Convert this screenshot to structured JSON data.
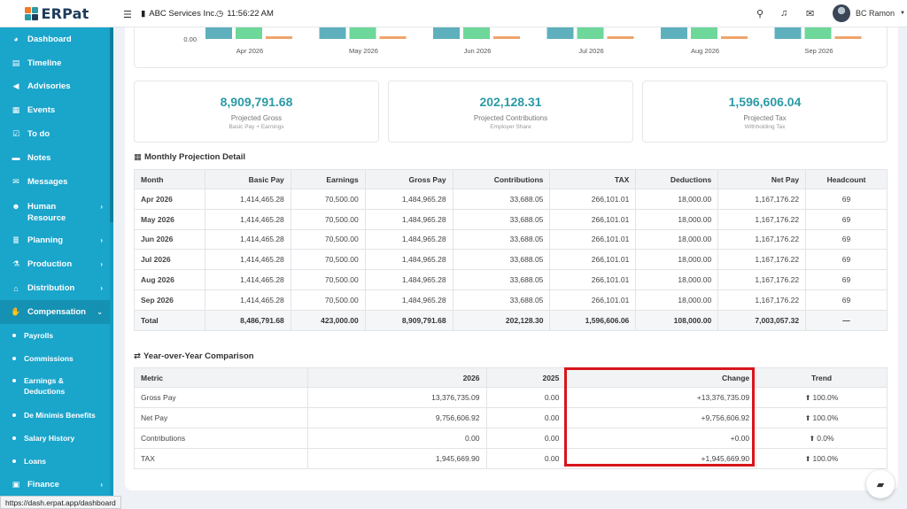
{
  "app": {
    "logo_text": "ERPat",
    "company": "ABC Services Inc.",
    "time": "11:56:22 AM",
    "user_name": "BC Ramon",
    "status_url": "https://dash.erpat.app/dashboard",
    "colors": {
      "sidebar": "#1aa5cb",
      "accent": "#2b9aa6",
      "positive": "#2aa33b",
      "highlight": "#d8151b"
    }
  },
  "sidebar": {
    "items": [
      {
        "label": "Dashboard",
        "icon": "dashboard-icon"
      },
      {
        "label": "Timeline",
        "icon": "timeline-icon"
      },
      {
        "label": "Advisories",
        "icon": "bullhorn-icon"
      },
      {
        "label": "Events",
        "icon": "calendar-icon"
      },
      {
        "label": "To do",
        "icon": "checkbox-icon"
      },
      {
        "label": "Notes",
        "icon": "note-icon"
      },
      {
        "label": "Messages",
        "icon": "envelope-icon"
      },
      {
        "label": "Human Resource",
        "icon": "users-icon"
      },
      {
        "label": "Planning",
        "icon": "layers-icon"
      },
      {
        "label": "Production",
        "icon": "flask-icon"
      },
      {
        "label": "Distribution",
        "icon": "building-icon"
      },
      {
        "label": "Compensation",
        "icon": "hand-money-icon"
      }
    ],
    "sub_items": [
      {
        "label": "Payrolls"
      },
      {
        "label": "Commissions"
      },
      {
        "label": "Earnings & Deductions"
      },
      {
        "label": "De Minimis Benefits"
      },
      {
        "label": "Salary History"
      },
      {
        "label": "Loans"
      }
    ],
    "finance": {
      "label": "Finance",
      "icon": "finance-icon"
    }
  },
  "chart": {
    "zero_label": "0.00",
    "months": [
      "Apr 2026",
      "May 2026",
      "Jun 2026",
      "Jul 2026",
      "Aug 2026",
      "Sep 2026"
    ],
    "series_colors": [
      "#5fb0bd",
      "#6ed79a",
      "#f0a46a"
    ]
  },
  "stats": [
    {
      "value": "8,909,791.68",
      "label": "Projected Gross",
      "sub": "Basic Pay + Earnings"
    },
    {
      "value": "202,128.31",
      "label": "Projected Contributions",
      "sub": "Employer Share"
    },
    {
      "value": "1,596,606.04",
      "label": "Projected Tax",
      "sub": "Withholding Tax"
    }
  ],
  "monthly": {
    "title": "Monthly Projection Detail",
    "headers": [
      "Month",
      "Basic Pay",
      "Earnings",
      "Gross Pay",
      "Contributions",
      "TAX",
      "Deductions",
      "Net Pay",
      "Headcount"
    ],
    "rows": [
      [
        "Apr 2026",
        "1,414,465.28",
        "70,500.00",
        "1,484,965.28",
        "33,688.05",
        "266,101.01",
        "18,000.00",
        "1,167,176.22",
        "69"
      ],
      [
        "May 2026",
        "1,414,465.28",
        "70,500.00",
        "1,484,965.28",
        "33,688.05",
        "266,101.01",
        "18,000.00",
        "1,167,176.22",
        "69"
      ],
      [
        "Jun 2026",
        "1,414,465.28",
        "70,500.00",
        "1,484,965.28",
        "33,688.05",
        "266,101.01",
        "18,000.00",
        "1,167,176.22",
        "69"
      ],
      [
        "Jul 2026",
        "1,414,465.28",
        "70,500.00",
        "1,484,965.28",
        "33,688.05",
        "266,101.01",
        "18,000.00",
        "1,167,176.22",
        "69"
      ],
      [
        "Aug 2026",
        "1,414,465.28",
        "70,500.00",
        "1,484,965.28",
        "33,688.05",
        "266,101.01",
        "18,000.00",
        "1,167,176.22",
        "69"
      ],
      [
        "Sep 2026",
        "1,414,465.28",
        "70,500.00",
        "1,484,965.28",
        "33,688.05",
        "266,101.01",
        "18,000.00",
        "1,167,176.22",
        "69"
      ]
    ],
    "total": [
      "Total",
      "8,486,791.68",
      "423,000.00",
      "8,909,791.68",
      "202,128.30",
      "1,596,606.06",
      "108,000.00",
      "7,003,057.32",
      "—"
    ]
  },
  "yoy": {
    "title": "Year-over-Year Comparison",
    "headers": [
      "Metric",
      "2026",
      "2025",
      "Change",
      "Trend"
    ],
    "rows": [
      [
        "Gross Pay",
        "13,376,735.09",
        "0.00",
        "+13,376,735.09",
        "100.0%"
      ],
      [
        "Net Pay",
        "9,756,606.92",
        "0.00",
        "+9,756,606.92",
        "100.0%"
      ],
      [
        "Contributions",
        "0.00",
        "0.00",
        "+0.00",
        "0.0%"
      ],
      [
        "TAX",
        "1,945,669.90",
        "0.00",
        "+1,945,669.90",
        "100.0%"
      ]
    ]
  }
}
